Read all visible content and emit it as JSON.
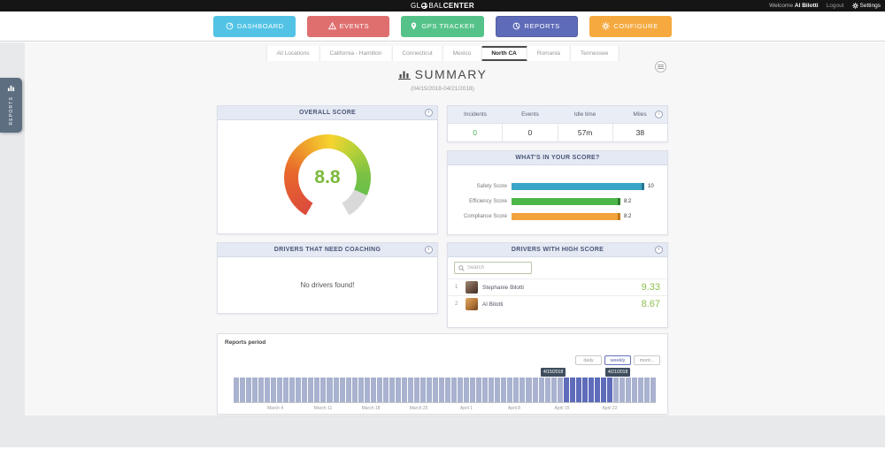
{
  "topbar": {
    "logo_prefix": "GL",
    "logo_mid": "BAL",
    "logo_suffix": "CENTER",
    "welcome": "Welcome",
    "user": "Al Bilotti",
    "logout": "Logout",
    "settings": "Settings"
  },
  "nav": {
    "active": "REPORTS",
    "buttons": [
      {
        "label": "DASHBOARD",
        "icon": "dashboard-icon",
        "color": "#52c3e5"
      },
      {
        "label": "EVENTS",
        "icon": "warning-icon",
        "color": "#df6f6f"
      },
      {
        "label": "GPS TRACKER",
        "icon": "pin-icon",
        "color": "#55c389"
      },
      {
        "label": "REPORTS",
        "icon": "pie-icon",
        "color": "#5e6bb8"
      },
      {
        "label": "CONFIGURE",
        "icon": "gear-icon",
        "color": "#f5a93e"
      }
    ]
  },
  "tabs": [
    {
      "label": "All Locations",
      "active": false
    },
    {
      "label": "California - Hamilton",
      "active": false
    },
    {
      "label": "Connecticut",
      "active": false
    },
    {
      "label": "Mexico",
      "active": false
    },
    {
      "label": "North CA",
      "active": true
    },
    {
      "label": "Romania",
      "active": false
    },
    {
      "label": "Tennessee",
      "active": false
    }
  ],
  "sidebar_tab": {
    "label": "REPORTS"
  },
  "summary": {
    "title": "SUMMARY",
    "date_range": "(04/15/2018-04/21/2018)"
  },
  "cards": {
    "overall_title": "OVERALL SCORE",
    "breakdown_title": "WHAT'S IN YOUR SCORE?",
    "coaching_title": "DRIVERS THAT NEED COACHING",
    "high_score_title": "DRIVERS WITH HIGH SCORE"
  },
  "stats": {
    "columns": [
      {
        "label": "Incidents",
        "value": "0",
        "color": "#4caf50"
      },
      {
        "label": "Events",
        "value": "0",
        "color": "#333333"
      },
      {
        "label": "Idle time",
        "value": "57m",
        "color": "#333333"
      },
      {
        "label": "Miles",
        "value": "38",
        "color": "#333333"
      }
    ]
  },
  "coaching": {
    "empty_message": "No drivers found!"
  },
  "high_score": {
    "search_placeholder": "Search",
    "score_color": "#8fbf4d",
    "drivers": [
      {
        "rank": "1",
        "name": "Stephanie Bilotti",
        "score": "9.33"
      },
      {
        "rank": "2",
        "name": "Al Bilotti",
        "score": "8.67"
      }
    ]
  },
  "chart_data": [
    {
      "id": "overall-score-gauge",
      "type": "gauge",
      "title": "OVERALL SCORE",
      "value": 8.8,
      "display": "8.8",
      "min": 0,
      "max": 10,
      "color_scale": [
        "#dc4b3d",
        "#f2b52c",
        "#6abf4b"
      ],
      "value_color": "#7cb93e"
    },
    {
      "id": "score-breakdown",
      "type": "bar",
      "orientation": "horizontal",
      "title": "WHAT'S IN YOUR SCORE?",
      "categories": [
        "Safety Score",
        "Efficiency Score",
        "Compliance Score"
      ],
      "values": [
        10,
        8.2,
        8.2
      ],
      "display_values": [
        "10",
        "8.2",
        "8.2"
      ],
      "colors": [
        "#3aa5c6",
        "#4cb648",
        "#f2a33c"
      ],
      "cap_colors": [
        "#25768f",
        "#2f7d2c",
        "#c27a1a"
      ],
      "xlim": [
        0,
        10
      ]
    },
    {
      "id": "reports-timeline",
      "type": "bar",
      "title": "Reports period",
      "x_tick_labels": [
        "March 4",
        "March 11",
        "March 18",
        "March 25",
        "April 1",
        "April 8",
        "April 15",
        "April 22"
      ],
      "bar_count": 68,
      "uniform_value": 1,
      "bar_color": "#a9b2cf",
      "highlight_color": "#5e6cba",
      "highlight_range": {
        "from": "4/15/2018",
        "to": "4/21/2018",
        "start_index": 53,
        "end_index": 60
      },
      "period_options": [
        "daily",
        "weekly",
        "mont..."
      ],
      "active_period": "weekly"
    }
  ]
}
